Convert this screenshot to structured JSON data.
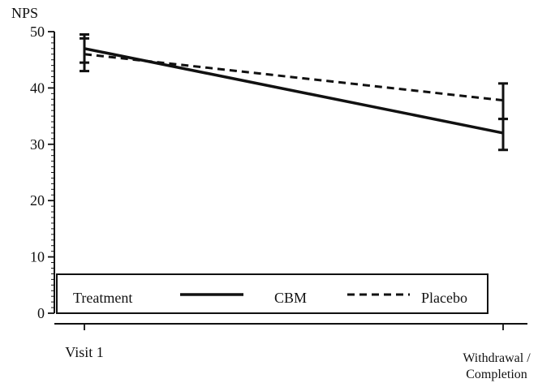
{
  "chart_data": {
    "type": "line",
    "ylabel": "NPS",
    "xlabel": "",
    "categories": [
      "Visit 1",
      "Withdrawal /\nCompletion"
    ],
    "ylim": [
      0,
      50
    ],
    "yticks": [
      0,
      10,
      20,
      30,
      40,
      50
    ],
    "grid": false,
    "legend": {
      "title": "Treatment",
      "placement": "bottom",
      "entries": [
        "CBM",
        "Placebo"
      ]
    },
    "series": [
      {
        "name": "CBM",
        "style": "solid",
        "values": [
          47.0,
          32.0
        ],
        "error_low": [
          43.0,
          29.0
        ],
        "error_high": [
          49.5,
          34.5
        ]
      },
      {
        "name": "Placebo",
        "style": "dashed",
        "values": [
          46.0,
          37.8
        ],
        "error_low": [
          44.5,
          34.5
        ],
        "error_high": [
          48.8,
          40.8
        ]
      }
    ]
  },
  "colors": {
    "ink": "#111111",
    "background": "#ffffff"
  }
}
